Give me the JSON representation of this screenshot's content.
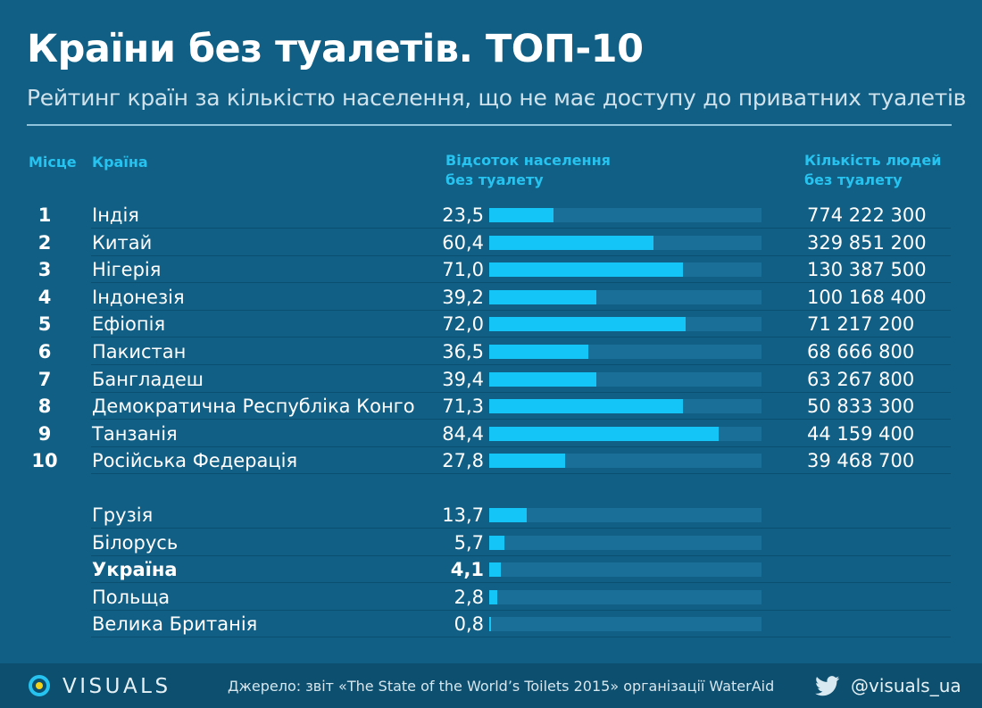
{
  "title": "Країни без туалетів. ТОП-10",
  "subtitle": "Рейтинг країн за кількістю населення, що не має доступу до приватних туалетів",
  "headers": {
    "rank": "Місце",
    "country": "Країна",
    "pct_line1": "Відсоток населення",
    "pct_line2": "без туалету",
    "count_line1": "Кількість людей",
    "count_line2": "без туалету"
  },
  "colors": {
    "background": "#115f84",
    "accent": "#13c6f7",
    "bar_track": "#196f97",
    "header_text": "#27c3f0"
  },
  "chart_data": {
    "type": "bar",
    "title": "Країни без туалетів. ТОП-10",
    "subtitle": "Рейтинг країн за кількістю населення, що не має доступу до приватних туалетів",
    "xlim": [
      0,
      100
    ],
    "rows": [
      {
        "rank": "1",
        "country": "Індія",
        "pct_label": "23,5",
        "pct": 23.5,
        "count": "774 222 300"
      },
      {
        "rank": "2",
        "country": "Китай",
        "pct_label": "60,4",
        "pct": 60.4,
        "count": "329 851 200"
      },
      {
        "rank": "3",
        "country": "Нігерія",
        "pct_label": "71,0",
        "pct": 71.0,
        "count": "130 387 500"
      },
      {
        "rank": "4",
        "country": "Індонезія",
        "pct_label": "39,2",
        "pct": 39.2,
        "count": "100 168 400"
      },
      {
        "rank": "5",
        "country": "Ефіопія",
        "pct_label": "72,0",
        "pct": 72.0,
        "count": "71 217 200"
      },
      {
        "rank": "6",
        "country": "Пакистан",
        "pct_label": "36,5",
        "pct": 36.5,
        "count": "68 666 800"
      },
      {
        "rank": "7",
        "country": "Бангладеш",
        "pct_label": "39,4",
        "pct": 39.4,
        "count": "63 267 800"
      },
      {
        "rank": "8",
        "country": "Демократична Республіка Конго",
        "pct_label": "71,3",
        "pct": 71.3,
        "count": "50 833 300"
      },
      {
        "rank": "9",
        "country": "Танзанія",
        "pct_label": "84,4",
        "pct": 84.4,
        "count": "44 159 400"
      },
      {
        "rank": "10",
        "country": "Російська Федерація",
        "pct_label": "27,8",
        "pct": 27.8,
        "count": "39 468 700"
      }
    ],
    "comparison": [
      {
        "country": "Грузія",
        "pct_label": "13,7",
        "pct": 13.7,
        "highlight": false
      },
      {
        "country": "Білорусь",
        "pct_label": "5,7",
        "pct": 5.7,
        "highlight": false
      },
      {
        "country": "Україна",
        "pct_label": "4,1",
        "pct": 4.1,
        "highlight": true
      },
      {
        "country": "Польща",
        "pct_label": "2,8",
        "pct": 2.8,
        "highlight": false
      },
      {
        "country": "Велика Британія",
        "pct_label": "0,8",
        "pct": 0.8,
        "highlight": false
      }
    ]
  },
  "footer": {
    "logo_icon": "visuals-logo-icon",
    "logo_text": "VISUALS",
    "source": "Джерело: звіт «The State of the World’s Toilets 2015» організації WaterAid",
    "twitter_icon": "twitter-bird-icon",
    "handle": "@visuals_ua"
  }
}
